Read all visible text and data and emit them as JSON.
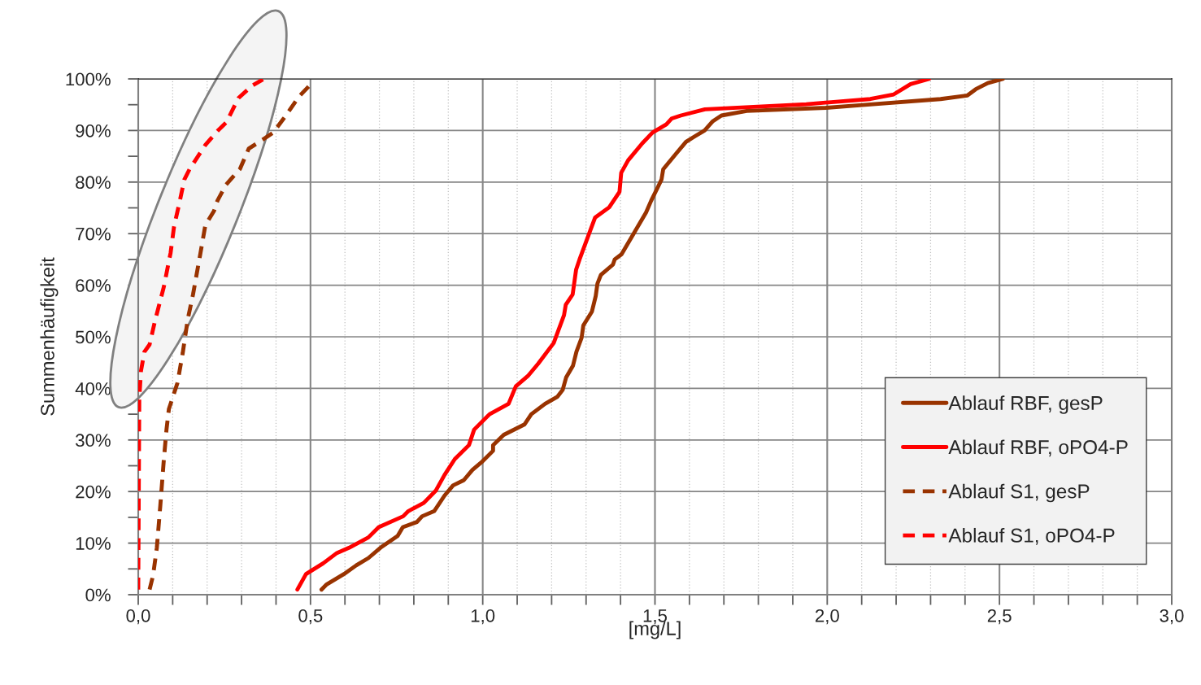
{
  "chart_data": {
    "type": "line",
    "xlabel": "[mg/L]",
    "ylabel": "Summenhäufigkeit",
    "xlim": [
      0,
      3
    ],
    "ylim": [
      0,
      100
    ],
    "xticks": [
      {
        "value": 0,
        "label": "0,0"
      },
      {
        "value": 0.1,
        "label": null
      },
      {
        "value": 0.2,
        "label": null
      },
      {
        "value": 0.3,
        "label": null
      },
      {
        "value": 0.4,
        "label": null
      },
      {
        "value": 0.5,
        "label": "0,5"
      },
      {
        "value": 0.6,
        "label": null
      },
      {
        "value": 0.7,
        "label": null
      },
      {
        "value": 0.8,
        "label": null
      },
      {
        "value": 0.9,
        "label": null
      },
      {
        "value": 1.0,
        "label": "1,0"
      },
      {
        "value": 1.1,
        "label": null
      },
      {
        "value": 1.2,
        "label": null
      },
      {
        "value": 1.3,
        "label": null
      },
      {
        "value": 1.4,
        "label": null
      },
      {
        "value": 1.5,
        "label": "1,5"
      },
      {
        "value": 1.6,
        "label": null
      },
      {
        "value": 1.7,
        "label": null
      },
      {
        "value": 1.8,
        "label": null
      },
      {
        "value": 1.9,
        "label": null
      },
      {
        "value": 2.0,
        "label": "2,0"
      },
      {
        "value": 2.1,
        "label": null
      },
      {
        "value": 2.2,
        "label": null
      },
      {
        "value": 2.3,
        "label": null
      },
      {
        "value": 2.4,
        "label": null
      },
      {
        "value": 2.5,
        "label": "2,5"
      },
      {
        "value": 2.6,
        "label": null
      },
      {
        "value": 2.7,
        "label": null
      },
      {
        "value": 2.8,
        "label": null
      },
      {
        "value": 2.9,
        "label": null
      },
      {
        "value": 3.0,
        "label": "3,0"
      }
    ],
    "yticks": [
      {
        "value": 0,
        "label": "0%"
      },
      {
        "value": 5,
        "label": null
      },
      {
        "value": 10,
        "label": "10%"
      },
      {
        "value": 15,
        "label": null
      },
      {
        "value": 20,
        "label": "20%"
      },
      {
        "value": 25,
        "label": null
      },
      {
        "value": 30,
        "label": "30%"
      },
      {
        "value": 35,
        "label": null
      },
      {
        "value": 40,
        "label": "40%"
      },
      {
        "value": 45,
        "label": null
      },
      {
        "value": 50,
        "label": "50%"
      },
      {
        "value": 55,
        "label": null
      },
      {
        "value": 60,
        "label": "60%"
      },
      {
        "value": 65,
        "label": null
      },
      {
        "value": 70,
        "label": "70%"
      },
      {
        "value": 75,
        "label": null
      },
      {
        "value": 80,
        "label": "80%"
      },
      {
        "value": 85,
        "label": null
      },
      {
        "value": 90,
        "label": "90%"
      },
      {
        "value": 95,
        "label": null
      },
      {
        "value": 100,
        "label": "100%"
      }
    ],
    "grid": true,
    "legend": "bottom right",
    "series": [
      {
        "name": "Ablauf RBF, gesP",
        "color": "#993300",
        "line_style": "solid",
        "x": [
          0.532,
          0.547,
          0.597,
          0.633,
          0.668,
          0.703,
          0.753,
          0.768,
          0.809,
          0.824,
          0.859,
          0.889,
          0.914,
          0.945,
          0.97,
          1.0,
          1.03,
          1.03,
          1.061,
          1.121,
          1.141,
          1.181,
          1.217,
          1.232,
          1.242,
          1.262,
          1.272,
          1.287,
          1.292,
          1.317,
          1.328,
          1.333,
          1.343,
          1.378,
          1.383,
          1.403,
          1.474,
          1.489,
          1.509,
          1.519,
          1.524,
          1.561,
          1.59,
          1.614,
          1.644,
          1.668,
          1.693,
          1.766,
          1.996,
          2.094,
          2.329,
          2.407,
          2.431,
          2.466,
          2.51
        ],
        "values": [
          1.0,
          2.0,
          4.0,
          5.7,
          7.1,
          9.1,
          11.4,
          13.1,
          14.1,
          15.2,
          16.2,
          19.2,
          21.2,
          22.2,
          24.2,
          25.9,
          27.9,
          29.0,
          31.0,
          33.0,
          35.0,
          37.0,
          38.4,
          39.7,
          42.1,
          44.4,
          47.1,
          49.8,
          52.2,
          54.9,
          57.9,
          60.3,
          62.0,
          64.0,
          65.0,
          66.0,
          74.1,
          76.4,
          79.1,
          80.5,
          82.5,
          85.5,
          87.8,
          88.8,
          90.0,
          91.8,
          92.9,
          93.8,
          94.4,
          94.9,
          96.1,
          96.8,
          98.0,
          99.2,
          100
        ]
      },
      {
        "name": "Ablauf RBF, oPO4-P",
        "color": "#ff0000",
        "line_style": "solid",
        "x": [
          0.462,
          0.487,
          0.537,
          0.577,
          0.612,
          0.668,
          0.698,
          0.769,
          0.784,
          0.829,
          0.864,
          0.889,
          0.919,
          0.96,
          0.975,
          1.02,
          1.075,
          1.096,
          1.131,
          1.161,
          1.206,
          1.236,
          1.241,
          1.261,
          1.271,
          1.281,
          1.311,
          1.326,
          1.367,
          1.397,
          1.402,
          1.422,
          1.463,
          1.493,
          1.533,
          1.548,
          1.575,
          1.645,
          1.939,
          2.125,
          2.193,
          2.242,
          2.296
        ],
        "values": [
          1.0,
          4.0,
          6.1,
          8.1,
          9.1,
          11.1,
          13.1,
          15.2,
          16.2,
          17.8,
          20.2,
          23.2,
          26.3,
          29.0,
          32.0,
          35.0,
          37.0,
          40.4,
          42.4,
          44.8,
          48.8,
          54.2,
          56.2,
          58.2,
          63.0,
          65.0,
          70.4,
          73.1,
          75.1,
          78.1,
          81.8,
          84.2,
          87.5,
          89.6,
          91.2,
          92.3,
          92.9,
          94.1,
          95.1,
          96.1,
          97.0,
          99.0,
          100
        ]
      },
      {
        "name": "Ablauf S1, gesP",
        "color": "#993300",
        "line_style": "dashed",
        "x": [
          0.033,
          0.043,
          0.054,
          0.064,
          0.074,
          0.082,
          0.089,
          0.099,
          0.114,
          0.129,
          0.144,
          0.159,
          0.18,
          0.195,
          0.22,
          0.23,
          0.255,
          0.295,
          0.321,
          0.361,
          0.392,
          0.422,
          0.467,
          0.497
        ],
        "values": [
          1.0,
          3.7,
          9.1,
          17.2,
          25.9,
          32.0,
          36.0,
          38.0,
          41.1,
          46.8,
          53.5,
          58.2,
          66.0,
          71.7,
          74.4,
          76.4,
          79.5,
          82.5,
          86.5,
          88.2,
          89.6,
          92.3,
          96.6,
          98.7
        ]
      },
      {
        "name": "Ablauf S1, oPO4-P",
        "color": "#ff0000",
        "line_style": "dashed",
        "x": [
          0.0,
          0.003,
          0.008,
          0.018,
          0.033,
          0.048,
          0.074,
          0.094,
          0.104,
          0.119,
          0.134,
          0.149,
          0.195,
          0.23,
          0.256,
          0.291,
          0.331,
          0.362
        ],
        "values": [
          1.0,
          38.0,
          43.4,
          47.1,
          48.5,
          52.9,
          59.6,
          66.3,
          71.4,
          75.8,
          80.5,
          82.5,
          87.2,
          89.9,
          91.6,
          96.3,
          98.7,
          99.9
        ]
      }
    ]
  }
}
